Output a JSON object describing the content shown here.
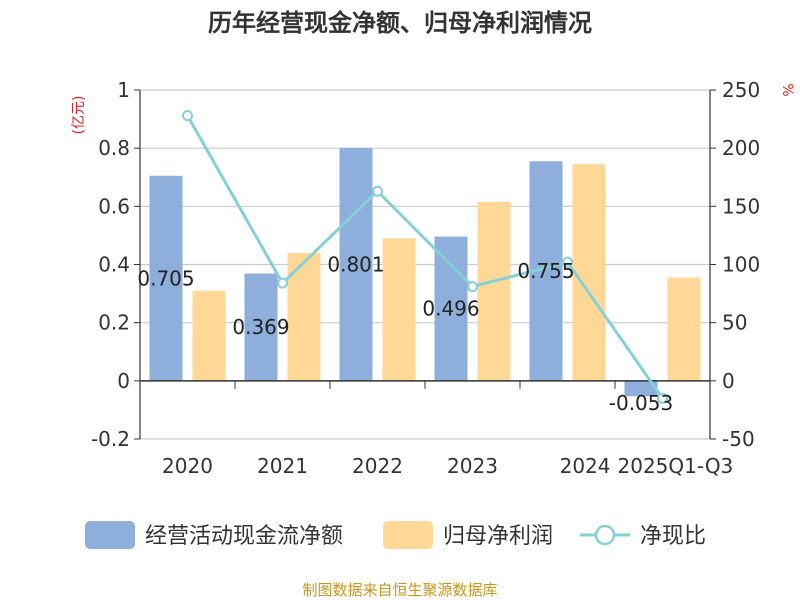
{
  "chart_data": {
    "type": "bar",
    "title": "历年经营现金净额、归母净利润情况",
    "ylabel_left": "(亿元)",
    "ylabel_right": "%",
    "categories": [
      "2020",
      "2021",
      "2022",
      "2023",
      "2024",
      "2025Q1-Q3"
    ],
    "ylim_left": [
      -0.2,
      1
    ],
    "yticks_left": [
      "-0.2",
      "0",
      "0.2",
      "0.4",
      "0.6",
      "0.8",
      "1"
    ],
    "ylim_right": [
      -50,
      250
    ],
    "yticks_right": [
      "-50",
      "0",
      "50",
      "100",
      "150",
      "200",
      "250"
    ],
    "grid": true,
    "legend_position": "bottom",
    "series": [
      {
        "name": "经营活动现金流净额",
        "type": "bar",
        "axis": "left",
        "color": "#8eaedb",
        "values": [
          0.705,
          0.369,
          0.801,
          0.496,
          0.755,
          -0.053
        ],
        "labels": [
          "0.705",
          "0.369",
          "0.801",
          "0.496",
          "0.755",
          "-0.053"
        ]
      },
      {
        "name": "归母净利润",
        "type": "bar",
        "axis": "left",
        "color": "#ffd797",
        "values": [
          0.31,
          0.44,
          0.49,
          0.615,
          0.745,
          0.355
        ]
      },
      {
        "name": "净现比",
        "type": "line",
        "axis": "right",
        "color": "#85d0d5",
        "values": [
          228,
          84,
          163,
          81,
          102,
          -15
        ]
      }
    ],
    "source": "制图数据来自恒生聚源数据库"
  }
}
